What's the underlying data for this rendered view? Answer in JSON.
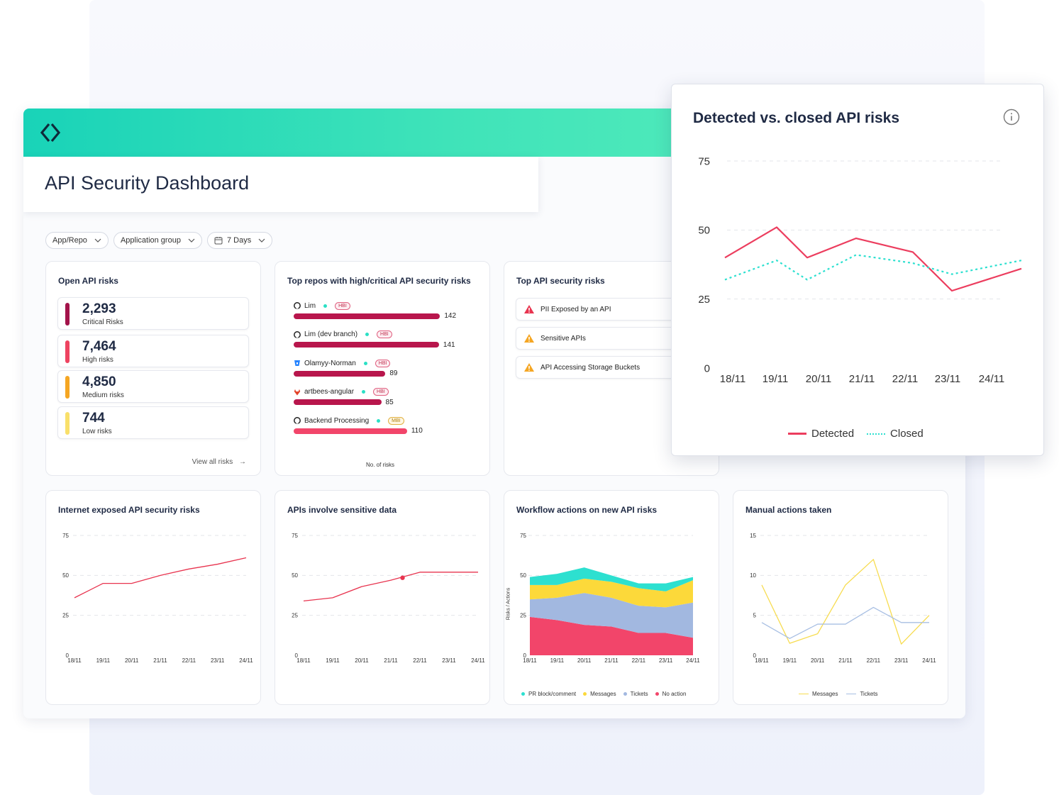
{
  "app": {
    "title": "API Security Dashboard",
    "accent": "#19d3b8",
    "logo_icon": "diamond-brackets-logo"
  },
  "filters": [
    {
      "label": "App/Repo",
      "icon": "chevron-down-icon"
    },
    {
      "label": "Application group",
      "icon": "chevron-down-icon"
    },
    {
      "label": "7 Days",
      "icon": "calendar-icon"
    }
  ],
  "open_risks": {
    "title": "Open API risks",
    "items": [
      {
        "count": "2,293",
        "label": "Critical Risks",
        "color": "#a3134a"
      },
      {
        "count": "7,464",
        "label": "High risks",
        "color": "#ee4360"
      },
      {
        "count": "4,850",
        "label": "Medium risks",
        "color": "#f5a623"
      },
      {
        "count": "744",
        "label": "Low risks",
        "color": "#f9e06a"
      }
    ],
    "view_all": "View all risks"
  },
  "top_repos": {
    "title": "Top repos with high/critical API security risks",
    "axis_label": "No. of risks",
    "items": [
      {
        "name": "Lim",
        "tag": "HBI",
        "value": 142,
        "source": "github-icon",
        "color": "#b8164c"
      },
      {
        "name": "Lim (dev branch)",
        "tag": "HBI",
        "value": 141,
        "source": "github-icon",
        "color": "#b8164c"
      },
      {
        "name": "Olamyy-Norman",
        "tag": "HBI",
        "value": 89,
        "source": "bitbucket-icon",
        "color": "#b8164c"
      },
      {
        "name": "artbees-angular",
        "tag": "HBI",
        "value": 85,
        "source": "gitlab-icon",
        "color": "#b8164c"
      },
      {
        "name": "Backend Processing",
        "tag": "MBI",
        "value": 110,
        "source": "github-icon",
        "color": "#f2456a"
      }
    ]
  },
  "top_api_risks": {
    "title": "Top API security risks",
    "items": [
      {
        "label": "PII Exposed by an API",
        "severity": "critical",
        "color": "#e8344f"
      },
      {
        "label": "Sensitive APIs",
        "severity": "medium",
        "color": "#f5a623"
      },
      {
        "label": "API Accessing Storage Buckets",
        "severity": "medium",
        "color": "#f5a623"
      }
    ]
  },
  "detected_vs_closed": {
    "title": "Detected vs. closed API risks",
    "legend": [
      "Detected",
      "Closed"
    ]
  },
  "bottom_cards": [
    {
      "title": "Internet exposed API security risks"
    },
    {
      "title": "APIs involve sensitive data"
    },
    {
      "title": "Workflow actions on new API risks",
      "ylabel": "Risks / Actions",
      "legend": [
        "PR block/comment",
        "Messages",
        "Tickets",
        "No action"
      ]
    },
    {
      "title": "Manual actions taken",
      "legend": [
        "Messages",
        "Tickets"
      ]
    }
  ],
  "chart_data": [
    {
      "id": "detected-vs-closed",
      "type": "line",
      "title": "Detected vs. closed API risks",
      "categories": [
        "18/11",
        "19/11",
        "20/11",
        "21/11",
        "22/11",
        "23/11",
        "24/11"
      ],
      "x": [
        0,
        1,
        2,
        3,
        4,
        5,
        6,
        6.7
      ],
      "yticks": [
        0,
        25,
        50,
        75
      ],
      "ylim": [
        0,
        75
      ],
      "grid": true,
      "series": [
        {
          "name": "Detected",
          "color": "#ec3d5e",
          "dash": false,
          "values": [
            40,
            51,
            40,
            47,
            42,
            28,
            36
          ]
        },
        {
          "name": "Closed",
          "color": "#2de0d0",
          "dash": true,
          "values": [
            32,
            39,
            32,
            41,
            38,
            34,
            39
          ]
        }
      ],
      "xvals": [
        0,
        1.4,
        2.1,
        3.0,
        4.3,
        5.0,
        5.6,
        6.7
      ],
      "legend_position": "bottom"
    },
    {
      "id": "internet-exposed",
      "type": "line",
      "title": "Internet exposed API security risks",
      "categories": [
        "18/11",
        "19/11",
        "20/11",
        "21/11",
        "22/11",
        "23/11",
        "24/11"
      ],
      "yticks": [
        0,
        25,
        50,
        75
      ],
      "ylim": [
        0,
        75
      ],
      "grid": true,
      "series": [
        {
          "name": "Risks",
          "color": "#e8344f",
          "values": [
            36,
            45,
            45,
            50,
            54,
            57,
            61
          ]
        }
      ]
    },
    {
      "id": "sensitive-data",
      "type": "line",
      "title": "APIs involve sensitive data",
      "categories": [
        "18/11",
        "19/11",
        "20/11",
        "21/11",
        "22/11",
        "23/11",
        "24/11"
      ],
      "yticks": [
        0,
        25,
        50,
        75
      ],
      "ylim": [
        0,
        75
      ],
      "grid": true,
      "series": [
        {
          "name": "Risks",
          "color": "#e8344f",
          "values": [
            34,
            36,
            43,
            47,
            52,
            52,
            52
          ]
        }
      ],
      "highlight_index": 3
    },
    {
      "id": "workflow-actions",
      "type": "area",
      "title": "Workflow actions on new API risks",
      "ylabel": "Risks / Actions",
      "categories": [
        "18/11",
        "19/11",
        "20/11",
        "21/11",
        "22/11",
        "23/11",
        "24/11"
      ],
      "yticks": [
        0,
        25,
        50,
        75
      ],
      "ylim": [
        0,
        75
      ],
      "grid": true,
      "stacked": true,
      "series": [
        {
          "name": "No action",
          "color": "#f2456a",
          "values": [
            24,
            22,
            19,
            18,
            14,
            14,
            11
          ]
        },
        {
          "name": "Tickets",
          "color": "#a2b8e0",
          "values": [
            11,
            14,
            20,
            18,
            17,
            16,
            22
          ]
        },
        {
          "name": "Messages",
          "color": "#fcd93a",
          "values": [
            9,
            8,
            9,
            10,
            11,
            10,
            14
          ]
        },
        {
          "name": "PR block/comment",
          "color": "#2de0d0",
          "values": [
            5,
            7,
            7,
            4,
            3,
            5,
            2
          ]
        }
      ]
    },
    {
      "id": "manual-actions",
      "type": "line",
      "title": "Manual actions taken",
      "categories": [
        "18/11",
        "19/11",
        "20/11",
        "21/11",
        "22/11",
        "23/11",
        "24/11"
      ],
      "yticks": [
        0,
        5,
        10,
        15
      ],
      "ylim": [
        0,
        15
      ],
      "grid": true,
      "series": [
        {
          "name": "Messages",
          "color": "#f7dc50",
          "values": [
            8.8,
            1.5,
            2.7,
            8.8,
            12,
            1.4,
            5
          ]
        },
        {
          "name": "Tickets",
          "color": "#a8bfe3",
          "values": [
            4.1,
            2.1,
            3.9,
            3.9,
            6,
            4.1,
            4.1
          ]
        }
      ]
    }
  ]
}
